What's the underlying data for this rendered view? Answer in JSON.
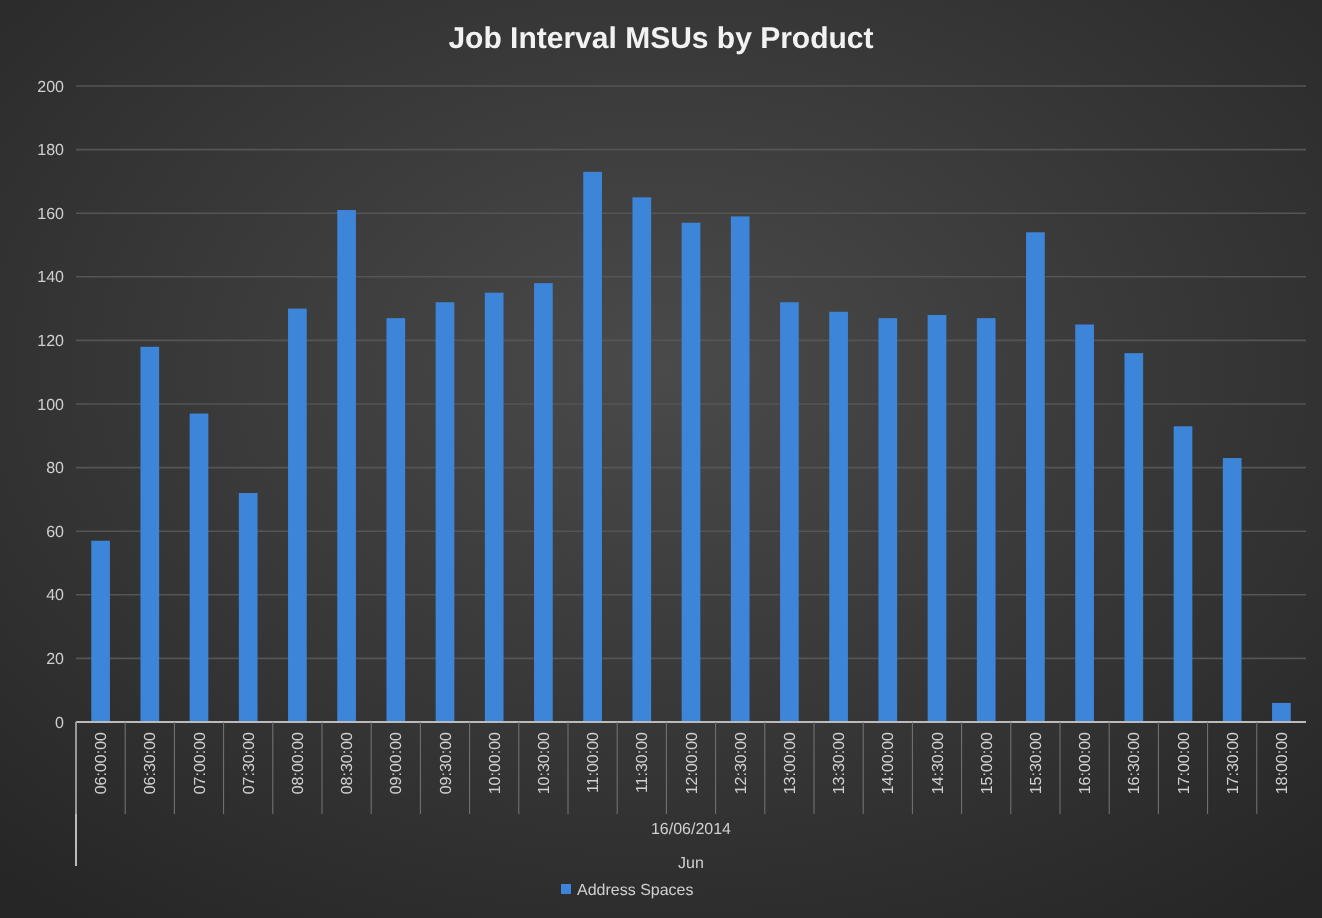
{
  "chart_data": {
    "type": "bar",
    "title": "Job Interval MSUs by Product",
    "xlabel": "16/06/2014",
    "annotations": [
      "Jun"
    ],
    "categories": [
      "06:00:00",
      "06:30:00",
      "07:00:00",
      "07:30:00",
      "08:00:00",
      "08:30:00",
      "09:00:00",
      "09:30:00",
      "10:00:00",
      "10:30:00",
      "11:00:00",
      "11:30:00",
      "12:00:00",
      "12:30:00",
      "13:00:00",
      "13:30:00",
      "14:00:00",
      "14:30:00",
      "15:00:00",
      "15:30:00",
      "16:00:00",
      "16:30:00",
      "17:00:00",
      "17:30:00",
      "18:00:00"
    ],
    "series": [
      {
        "name": "Address Spaces",
        "color": "#3d85d8",
        "values": [
          57,
          118,
          97,
          72,
          130,
          161,
          127,
          132,
          135,
          138,
          173,
          165,
          157,
          159,
          132,
          129,
          127,
          128,
          127,
          154,
          125,
          116,
          93,
          83,
          6
        ]
      }
    ],
    "ylim": [
      0,
      200
    ],
    "yticks": [
      0,
      20,
      40,
      60,
      80,
      100,
      120,
      140,
      160,
      180,
      200
    ],
    "grid": "y",
    "legend": "bottom"
  }
}
